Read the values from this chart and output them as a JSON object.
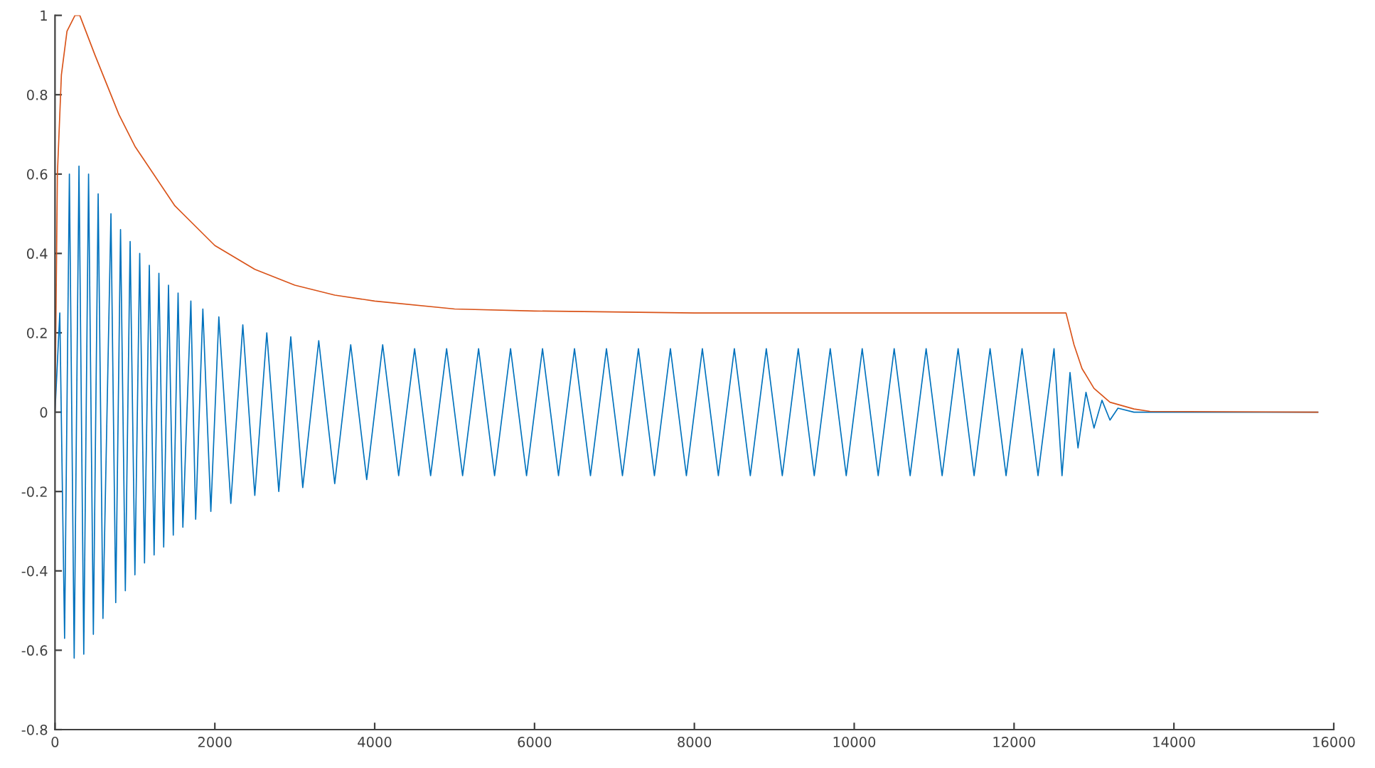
{
  "chart_data": {
    "type": "line",
    "xlim": [
      0,
      16000
    ],
    "ylim": [
      -0.8,
      1
    ],
    "xticks": [
      0,
      2000,
      4000,
      6000,
      8000,
      10000,
      12000,
      14000,
      16000
    ],
    "yticks": [
      -0.8,
      -0.6,
      -0.4,
      -0.2,
      0,
      0.2,
      0.4,
      0.6,
      0.8,
      1
    ],
    "grid": false,
    "marker": "none",
    "line_style": "solid",
    "series": [
      {
        "color": "#0072bd",
        "x": [
          0,
          60,
          120,
          180,
          240,
          300,
          360,
          420,
          480,
          540,
          600,
          700,
          760,
          820,
          880,
          940,
          1000,
          1060,
          1120,
          1180,
          1240,
          1300,
          1360,
          1420,
          1480,
          1540,
          1600,
          1700,
          1760,
          1850,
          1950,
          2050,
          2200,
          2350,
          2500,
          2650,
          2800,
          2950,
          3100,
          3300,
          3500,
          3700,
          3900,
          4100,
          4300,
          4500,
          4700,
          4900,
          5100,
          5300,
          5500,
          5700,
          5900,
          6100,
          6300,
          6500,
          6700,
          6900,
          7100,
          7300,
          7500,
          7700,
          7900,
          8100,
          8300,
          8500,
          8700,
          8900,
          9100,
          9300,
          9500,
          9700,
          9900,
          10100,
          10300,
          10500,
          10700,
          10900,
          11100,
          11300,
          11500,
          11700,
          11900,
          12100,
          12300,
          12500,
          12600,
          12700,
          12800,
          12900,
          13000,
          13100,
          13200,
          13300,
          13500,
          15800
        ],
        "values": [
          0,
          0.25,
          -0.57,
          0.6,
          -0.62,
          0.62,
          -0.61,
          0.6,
          -0.56,
          0.55,
          -0.52,
          0.5,
          -0.48,
          0.46,
          -0.45,
          0.43,
          -0.41,
          0.4,
          -0.38,
          0.37,
          -0.36,
          0.35,
          -0.34,
          0.32,
          -0.31,
          0.3,
          -0.29,
          0.28,
          -0.27,
          0.26,
          -0.25,
          0.24,
          -0.23,
          0.22,
          -0.21,
          0.2,
          -0.2,
          0.19,
          -0.19,
          0.18,
          -0.18,
          0.17,
          -0.17,
          0.17,
          -0.16,
          0.16,
          -0.16,
          0.16,
          -0.16,
          0.16,
          -0.16,
          0.16,
          -0.16,
          0.16,
          -0.16,
          0.16,
          -0.16,
          0.16,
          -0.16,
          0.16,
          -0.16,
          0.16,
          -0.16,
          0.16,
          -0.16,
          0.16,
          -0.16,
          0.16,
          -0.16,
          0.16,
          -0.16,
          0.16,
          -0.16,
          0.16,
          -0.16,
          0.16,
          -0.16,
          0.16,
          -0.16,
          0.16,
          -0.16,
          0.16,
          -0.16,
          0.16,
          -0.16,
          0.16,
          -0.16,
          0.1,
          -0.09,
          0.05,
          -0.04,
          0.03,
          -0.02,
          0.01,
          0,
          0
        ]
      },
      {
        "color": "#d95319",
        "x": [
          0,
          30,
          80,
          150,
          250,
          310,
          500,
          800,
          1000,
          1500,
          2000,
          2500,
          3000,
          3500,
          4000,
          5000,
          6000,
          8000,
          12650,
          12750,
          12850,
          13000,
          13200,
          13500,
          13700,
          15800
        ],
        "values": [
          0,
          0.6,
          0.85,
          0.96,
          1,
          1,
          0.9,
          0.75,
          0.67,
          0.52,
          0.42,
          0.36,
          0.32,
          0.295,
          0.28,
          0.26,
          0.255,
          0.25,
          0.25,
          0.17,
          0.11,
          0.06,
          0.025,
          0.008,
          0.002,
          0
        ]
      }
    ]
  }
}
